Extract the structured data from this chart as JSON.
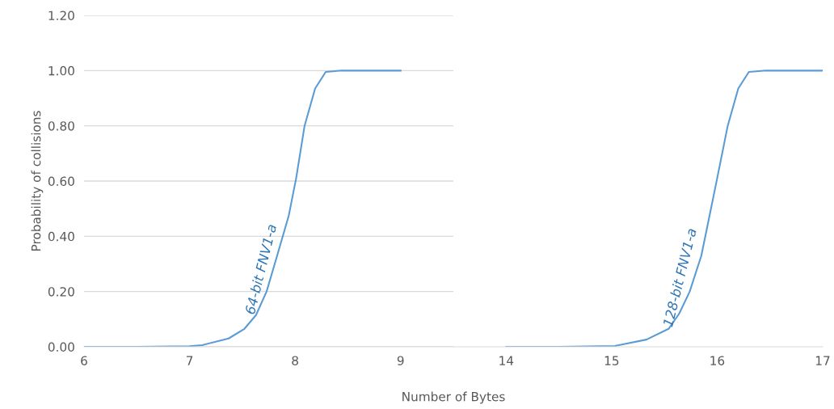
{
  "chart_data": [
    {
      "type": "line",
      "xlabel": "Number of Bytes",
      "ylabel": "Probability of collisions",
      "xlim": [
        6,
        9.5
      ],
      "xticks": [
        6,
        7,
        8,
        9
      ],
      "ylim": [
        0,
        1.2
      ],
      "yticks": [
        {
          "value": 0,
          "label": "0.00"
        },
        {
          "value": 0.2,
          "label": "0.20"
        },
        {
          "value": 0.4,
          "label": "0.40"
        },
        {
          "value": 0.6,
          "label": "0.60"
        },
        {
          "value": 0.8,
          "label": "0.80"
        },
        {
          "value": 1.0,
          "label": "1.00"
        },
        {
          "value": 1.2,
          "label": "1.20"
        }
      ],
      "grid": "y",
      "line_style": "solid",
      "series": [
        {
          "name": "64-bit FNV1-a",
          "color": "#5b9bd5",
          "x": [
            6,
            6.5,
            7,
            7.12,
            7.37,
            7.52,
            7.63,
            7.73,
            7.83,
            7.94,
            8.01,
            8.09,
            8.19,
            8.29,
            8.44,
            9
          ],
          "values": [
            0,
            0,
            0.002,
            0.006,
            0.03,
            0.065,
            0.115,
            0.2,
            0.33,
            0.475,
            0.61,
            0.8,
            0.935,
            0.995,
            1,
            1
          ]
        }
      ]
    },
    {
      "type": "line",
      "xlim": [
        13.5,
        17
      ],
      "xticks": [
        14,
        15,
        16,
        17
      ],
      "ylim": [
        0,
        1.2
      ],
      "grid": "y",
      "tick_labels": "x",
      "line_style": "solid",
      "series": [
        {
          "name": "128-bit FNV1-a",
          "color": "#5b9bd5",
          "x": [
            14,
            14.5,
            15.03,
            15.33,
            15.54,
            15.64,
            15.74,
            15.85,
            15.92,
            16,
            16.1,
            16.2,
            16.3,
            16.46,
            17
          ],
          "values": [
            0,
            0,
            0.003,
            0.026,
            0.065,
            0.12,
            0.2,
            0.33,
            0.46,
            0.61,
            0.8,
            0.935,
            0.995,
            1,
            1
          ]
        }
      ]
    }
  ]
}
